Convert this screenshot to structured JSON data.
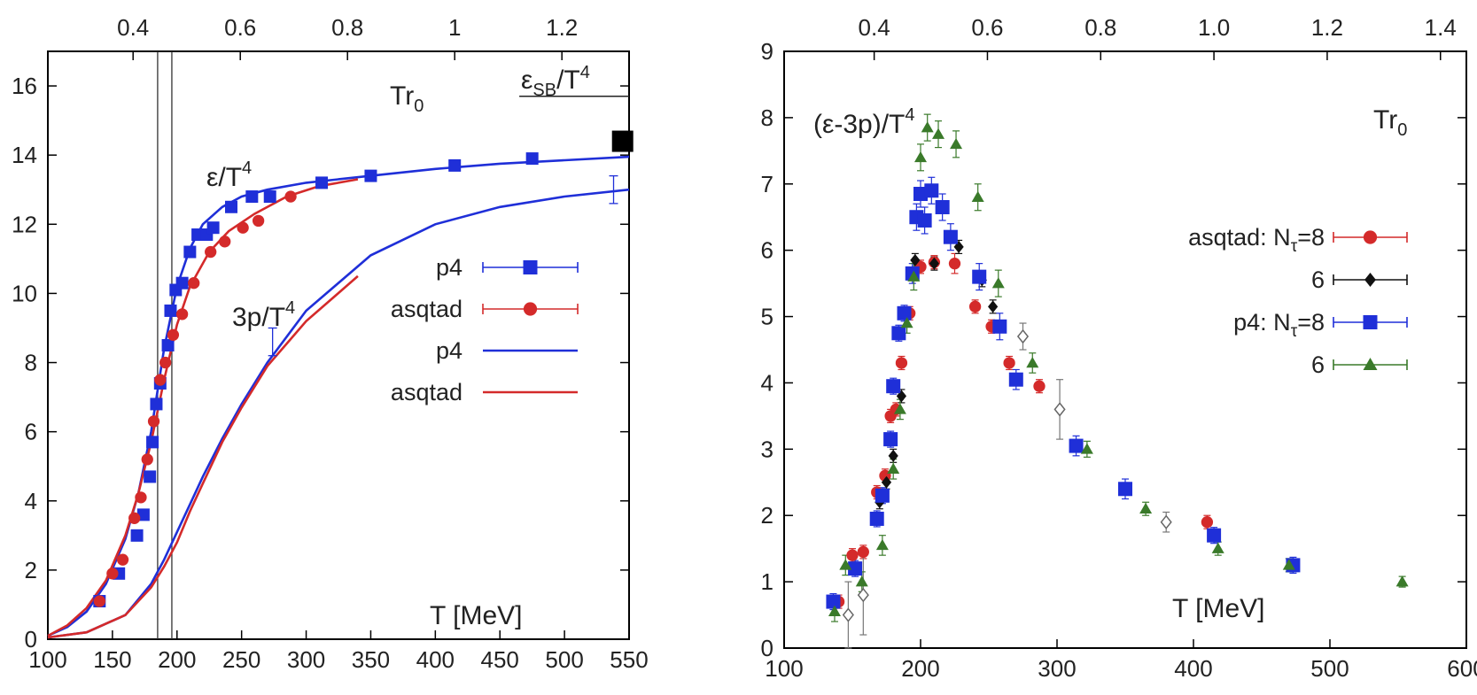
{
  "chart_data": [
    {
      "type": "scatter",
      "title": "",
      "xlabel": "T [MeV]",
      "ylabel": "",
      "xlim": [
        100,
        550
      ],
      "ylim": [
        0,
        17
      ],
      "xticks": [
        100,
        150,
        200,
        250,
        300,
        350,
        400,
        450,
        500,
        550
      ],
      "yticks": [
        0,
        2,
        4,
        6,
        8,
        10,
        12,
        14,
        16
      ],
      "top_axis_label": "Tr0",
      "top_ticks": [
        {
          "label": "0.4",
          "T": 166
        },
        {
          "label": "0.6",
          "T": 249
        },
        {
          "label": "0.8",
          "T": 332
        },
        {
          "label": "1",
          "T": 415
        },
        {
          "label": "1.2",
          "T": 498
        }
      ],
      "annotations": {
        "tr0_base": "Tr",
        "tr0_sub": "0",
        "eps_text": "ε/T",
        "eps_sup": "4",
        "threep_text": "3p/T",
        "threep_sup": "4",
        "sb_eps": "ε",
        "sb_sub": "SB",
        "sb_rest": "/T",
        "sb_sup": "4",
        "xaxis_label": "T [MeV]"
      },
      "sb_limit": {
        "value": 15.7,
        "x_from": 465,
        "x_to": 550
      },
      "vertical_lines": [
        185,
        196
      ],
      "legend": [
        {
          "label": "p4",
          "kind": "marker-square",
          "color": "#1f2fd8"
        },
        {
          "label": "asqtad",
          "kind": "marker-circle",
          "color": "#d42a2a"
        },
        {
          "label": "p4",
          "kind": "line",
          "color": "#1f2fd8"
        },
        {
          "label": "asqtad",
          "kind": "line",
          "color": "#d42a2a"
        }
      ],
      "series": [
        {
          "name": "p4 ε/T⁴",
          "marker": "square",
          "color": "#1f2fd8",
          "x": [
            140,
            155,
            169,
            174,
            179,
            181,
            184,
            187,
            193,
            195,
            199,
            204,
            210,
            216,
            223,
            228,
            242,
            258,
            272,
            312,
            350,
            415,
            475
          ],
          "y": [
            1.1,
            1.9,
            3.0,
            3.6,
            4.7,
            5.7,
            6.8,
            7.4,
            8.5,
            9.5,
            10.1,
            10.3,
            11.2,
            11.7,
            11.7,
            11.9,
            12.5,
            12.8,
            12.8,
            13.2,
            13.4,
            13.7,
            13.9
          ]
        },
        {
          "name": "asqtad ε/T⁴",
          "marker": "circle",
          "color": "#d42a2a",
          "x": [
            140,
            150,
            158,
            167,
            172,
            177,
            182,
            187,
            191,
            197,
            204,
            213,
            226,
            237,
            251,
            263,
            288
          ],
          "y": [
            1.1,
            1.9,
            2.3,
            3.5,
            4.1,
            5.2,
            6.3,
            7.5,
            8.0,
            8.8,
            9.4,
            10.3,
            11.2,
            11.5,
            11.9,
            12.1,
            12.8
          ]
        },
        {
          "name": "SB limit marker",
          "marker": "big-square",
          "color": "#000000",
          "x": [
            545
          ],
          "y": [
            14.4
          ]
        }
      ],
      "errorbars": [
        {
          "x": 274,
          "y": 8.6,
          "err": 0.4
        },
        {
          "x": 538,
          "y": 13.0,
          "err": 0.4
        }
      ],
      "curves": [
        {
          "name": "p4 ε/T⁴ fit",
          "color": "#1f2fd8",
          "x": [
            100,
            115,
            130,
            145,
            160,
            170,
            180,
            190,
            200,
            210,
            220,
            235,
            250,
            270,
            300,
            350,
            400,
            450,
            500,
            550
          ],
          "y": [
            0.1,
            0.35,
            0.8,
            1.6,
            2.9,
            4.2,
            6.0,
            8.4,
            10.2,
            11.3,
            12.0,
            12.5,
            12.8,
            13.0,
            13.2,
            13.4,
            13.6,
            13.75,
            13.85,
            13.95
          ]
        },
        {
          "name": "asqtad ε/T⁴ fit",
          "color": "#d42a2a",
          "x": [
            100,
            115,
            130,
            145,
            160,
            170,
            180,
            190,
            200,
            210,
            225,
            240,
            260,
            285,
            310,
            340
          ],
          "y": [
            0.1,
            0.4,
            0.9,
            1.7,
            3.0,
            4.2,
            5.7,
            7.5,
            9.1,
            10.2,
            11.2,
            11.8,
            12.3,
            12.8,
            13.1,
            13.3
          ]
        },
        {
          "name": "p4 3p/T⁴ fit",
          "color": "#1f2fd8",
          "x": [
            100,
            130,
            160,
            180,
            190,
            200,
            210,
            220,
            235,
            250,
            270,
            300,
            350,
            400,
            450,
            500,
            550
          ],
          "y": [
            0.05,
            0.2,
            0.7,
            1.6,
            2.3,
            3.1,
            3.9,
            4.7,
            5.8,
            6.8,
            8.0,
            9.5,
            11.1,
            12.0,
            12.5,
            12.8,
            13.0
          ]
        },
        {
          "name": "asqtad 3p/T⁴ fit",
          "color": "#d42a2a",
          "x": [
            100,
            130,
            160,
            180,
            190,
            200,
            210,
            220,
            235,
            250,
            270,
            300,
            340
          ],
          "y": [
            0.05,
            0.2,
            0.7,
            1.5,
            2.1,
            2.8,
            3.7,
            4.5,
            5.7,
            6.7,
            7.9,
            9.2,
            10.5
          ]
        }
      ]
    },
    {
      "type": "scatter",
      "title": "",
      "xlabel": "T [MeV]",
      "ylabel": "(ε-3p)/T⁴",
      "xlim": [
        100,
        600
      ],
      "ylim": [
        0,
        9
      ],
      "xticks": [
        100,
        200,
        300,
        400,
        500,
        600
      ],
      "yticks": [
        0,
        1,
        2,
        3,
        4,
        5,
        6,
        7,
        8,
        9
      ],
      "top_axis_label": "Tr0",
      "top_ticks": [
        {
          "label": "0.4",
          "T": 166
        },
        {
          "label": "0.6",
          "T": 249
        },
        {
          "label": "0.8",
          "T": 332
        },
        {
          "label": "1.0",
          "T": 415
        },
        {
          "label": "1.2",
          "T": 498
        },
        {
          "label": "1.4",
          "T": 581
        }
      ],
      "annotations": {
        "ylab_text": "(ε-3p)/T",
        "ylab_sup": "4",
        "tr0_base": "Tr",
        "tr0_sub": "0",
        "xaxis_label": "T [MeV]"
      },
      "legend": [
        {
          "label": "asqtad: N",
          "sub": "τ",
          "suffix": "=8",
          "marker": "circle",
          "color": "#d42a2a"
        },
        {
          "label": "6",
          "sub": "",
          "suffix": "",
          "marker": "diamond",
          "color": "#111111"
        },
        {
          "label": "p4: N",
          "sub": "τ",
          "suffix": "=8",
          "marker": "square",
          "color": "#1f2fd8"
        },
        {
          "label": "6",
          "sub": "",
          "suffix": "",
          "marker": "triangle",
          "color": "#3a7a2a"
        }
      ],
      "series": [
        {
          "name": "asqtad Nτ=8",
          "marker": "circle",
          "color": "#d42a2a",
          "x": [
            140,
            150,
            158,
            168,
            174,
            178,
            182,
            186,
            192,
            200,
            210,
            225,
            240,
            252,
            265,
            287,
            410
          ],
          "y": [
            0.7,
            1.4,
            1.45,
            2.35,
            2.6,
            3.5,
            3.6,
            4.3,
            5.05,
            5.75,
            5.82,
            5.8,
            5.15,
            4.85,
            4.3,
            3.95,
            1.9
          ],
          "err": [
            0.1,
            0.1,
            0.1,
            0.1,
            0.1,
            0.1,
            0.1,
            0.1,
            0.1,
            0.1,
            0.1,
            0.15,
            0.1,
            0.1,
            0.1,
            0.1,
            0.1
          ]
        },
        {
          "name": "asqtad Nτ=6",
          "marker": "diamond",
          "color": "#111111",
          "x": [
            170,
            175,
            180,
            186,
            196,
            210,
            228,
            245,
            253
          ],
          "y": [
            2.2,
            2.5,
            2.9,
            3.8,
            5.85,
            5.8,
            6.05,
            5.55,
            5.15
          ],
          "err": [
            0.1,
            0.1,
            0.1,
            0.1,
            0.1,
            0.1,
            0.1,
            0.1,
            0.1
          ]
        },
        {
          "name": "asqtad Nτ=6 (open)",
          "marker": "diamond-open",
          "color": "#666666",
          "x": [
            147,
            158,
            275,
            302,
            380
          ],
          "y": [
            0.5,
            0.8,
            4.7,
            3.6,
            1.9
          ],
          "err": [
            0.5,
            0.6,
            0.2,
            0.45,
            0.15
          ]
        },
        {
          "name": "p4 Nτ=8",
          "marker": "square",
          "color": "#1f2fd8",
          "x": [
            136,
            152,
            168,
            172,
            178,
            180,
            184,
            188,
            194,
            197,
            200,
            203,
            208,
            216,
            222,
            243,
            258,
            270,
            314,
            350,
            415,
            473
          ],
          "y": [
            0.7,
            1.2,
            1.95,
            2.3,
            3.15,
            3.95,
            4.75,
            5.05,
            5.65,
            6.5,
            6.85,
            6.45,
            6.9,
            6.65,
            6.2,
            5.6,
            4.85,
            4.05,
            3.05,
            2.4,
            1.7,
            1.25
          ],
          "err": [
            0.12,
            0.12,
            0.12,
            0.12,
            0.12,
            0.12,
            0.12,
            0.12,
            0.15,
            0.2,
            0.2,
            0.2,
            0.2,
            0.2,
            0.2,
            0.2,
            0.2,
            0.15,
            0.15,
            0.15,
            0.12,
            0.12
          ]
        },
        {
          "name": "p4 Nτ=6",
          "marker": "triangle",
          "color": "#3a7a2a",
          "x": [
            137,
            145,
            157,
            172,
            180,
            185,
            190,
            195,
            200,
            205,
            213,
            226,
            242,
            257,
            282,
            322,
            365,
            418,
            470,
            553
          ],
          "y": [
            0.55,
            1.25,
            1.0,
            1.55,
            2.7,
            3.6,
            4.9,
            5.6,
            7.4,
            7.85,
            7.75,
            7.6,
            6.8,
            5.5,
            4.3,
            3.0,
            2.1,
            1.5,
            1.25,
            1.0
          ],
          "err": [
            0.15,
            0.15,
            0.15,
            0.15,
            0.15,
            0.15,
            0.15,
            0.2,
            0.2,
            0.2,
            0.2,
            0.2,
            0.2,
            0.2,
            0.15,
            0.12,
            0.1,
            0.1,
            0.1,
            0.08
          ]
        }
      ]
    }
  ]
}
